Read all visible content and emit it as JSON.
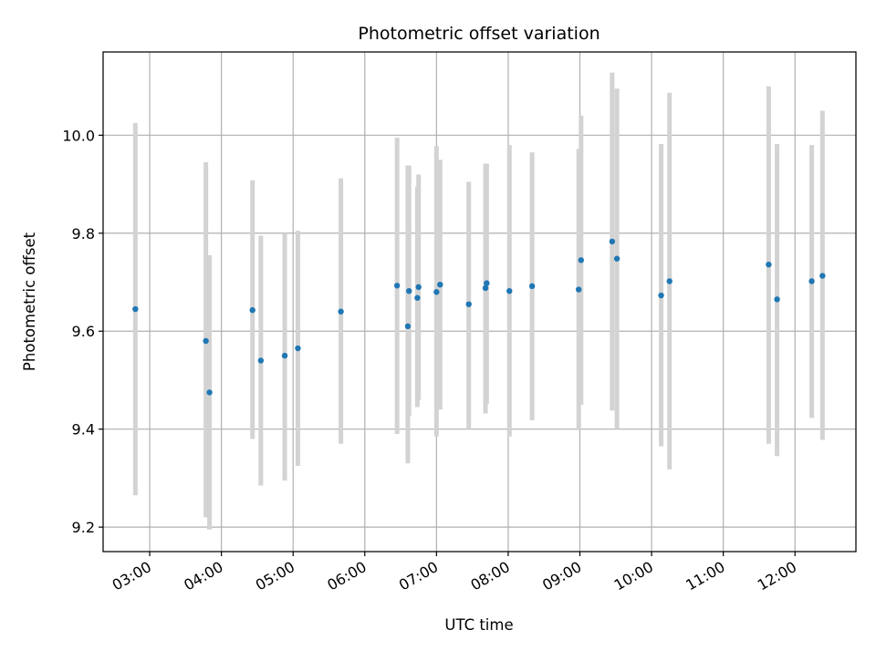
{
  "chart_data": {
    "type": "scatter",
    "title": "Photometric offset variation",
    "xlabel": "UTC time",
    "ylabel": "Photometric offset",
    "x_ticks": [
      "03:00",
      "04:00",
      "05:00",
      "06:00",
      "07:00",
      "08:00",
      "09:00",
      "10:00",
      "11:00",
      "12:00"
    ],
    "y_ticks": [
      "9.2",
      "9.4",
      "9.6",
      "9.8",
      "10.0"
    ],
    "xlim": [
      "02:21",
      "12:51"
    ],
    "ylim": [
      9.15,
      10.17
    ],
    "grid": true,
    "colors": {
      "points": "#1f77b4",
      "errorbars": "#d3d3d3",
      "grid": "#b0b0b0"
    },
    "points": [
      {
        "x": "02:48",
        "y": 9.645,
        "lo": 9.265,
        "hi": 10.025
      },
      {
        "x": "03:47",
        "y": 9.58,
        "lo": 9.22,
        "hi": 9.945
      },
      {
        "x": "03:50",
        "y": 9.475,
        "lo": 9.195,
        "hi": 9.755
      },
      {
        "x": "04:26",
        "y": 9.643,
        "lo": 9.38,
        "hi": 9.908
      },
      {
        "x": "04:33",
        "y": 9.54,
        "lo": 9.285,
        "hi": 9.795
      },
      {
        "x": "04:53",
        "y": 9.55,
        "lo": 9.295,
        "hi": 9.8
      },
      {
        "x": "05:04",
        "y": 9.565,
        "lo": 9.325,
        "hi": 9.805
      },
      {
        "x": "05:40",
        "y": 9.64,
        "lo": 9.37,
        "hi": 9.912
      },
      {
        "x": "06:27",
        "y": 9.693,
        "lo": 9.39,
        "hi": 9.995
      },
      {
        "x": "06:36",
        "y": 9.61,
        "lo": 9.33,
        "hi": 9.938
      },
      {
        "x": "06:37",
        "y": 9.682,
        "lo": 9.427,
        "hi": 9.938
      },
      {
        "x": "06:44",
        "y": 9.668,
        "lo": 9.445,
        "hi": 9.895
      },
      {
        "x": "06:45",
        "y": 9.69,
        "lo": 9.46,
        "hi": 9.92
      },
      {
        "x": "07:00",
        "y": 9.68,
        "lo": 9.385,
        "hi": 9.978
      },
      {
        "x": "07:03",
        "y": 9.695,
        "lo": 9.44,
        "hi": 9.95
      },
      {
        "x": "07:27",
        "y": 9.655,
        "lo": 9.4,
        "hi": 9.905
      },
      {
        "x": "07:41",
        "y": 9.688,
        "lo": 9.432,
        "hi": 9.942
      },
      {
        "x": "07:42",
        "y": 9.698,
        "lo": 9.452,
        "hi": 9.942
      },
      {
        "x": "08:01",
        "y": 9.682,
        "lo": 9.385,
        "hi": 9.98
      },
      {
        "x": "08:20",
        "y": 9.692,
        "lo": 9.418,
        "hi": 9.965
      },
      {
        "x": "08:59",
        "y": 9.685,
        "lo": 9.398,
        "hi": 9.972
      },
      {
        "x": "09:01",
        "y": 9.745,
        "lo": 9.45,
        "hi": 10.04
      },
      {
        "x": "09:27",
        "y": 9.783,
        "lo": 9.438,
        "hi": 10.128
      },
      {
        "x": "09:31",
        "y": 9.748,
        "lo": 9.4,
        "hi": 10.095
      },
      {
        "x": "10:08",
        "y": 9.673,
        "lo": 9.365,
        "hi": 9.982
      },
      {
        "x": "10:15",
        "y": 9.702,
        "lo": 9.318,
        "hi": 10.087
      },
      {
        "x": "11:38",
        "y": 9.736,
        "lo": 9.37,
        "hi": 10.1
      },
      {
        "x": "11:45",
        "y": 9.665,
        "lo": 9.345,
        "hi": 9.982
      },
      {
        "x": "12:14",
        "y": 9.702,
        "lo": 9.423,
        "hi": 9.98
      },
      {
        "x": "12:23",
        "y": 9.713,
        "lo": 9.378,
        "hi": 10.05
      }
    ]
  }
}
